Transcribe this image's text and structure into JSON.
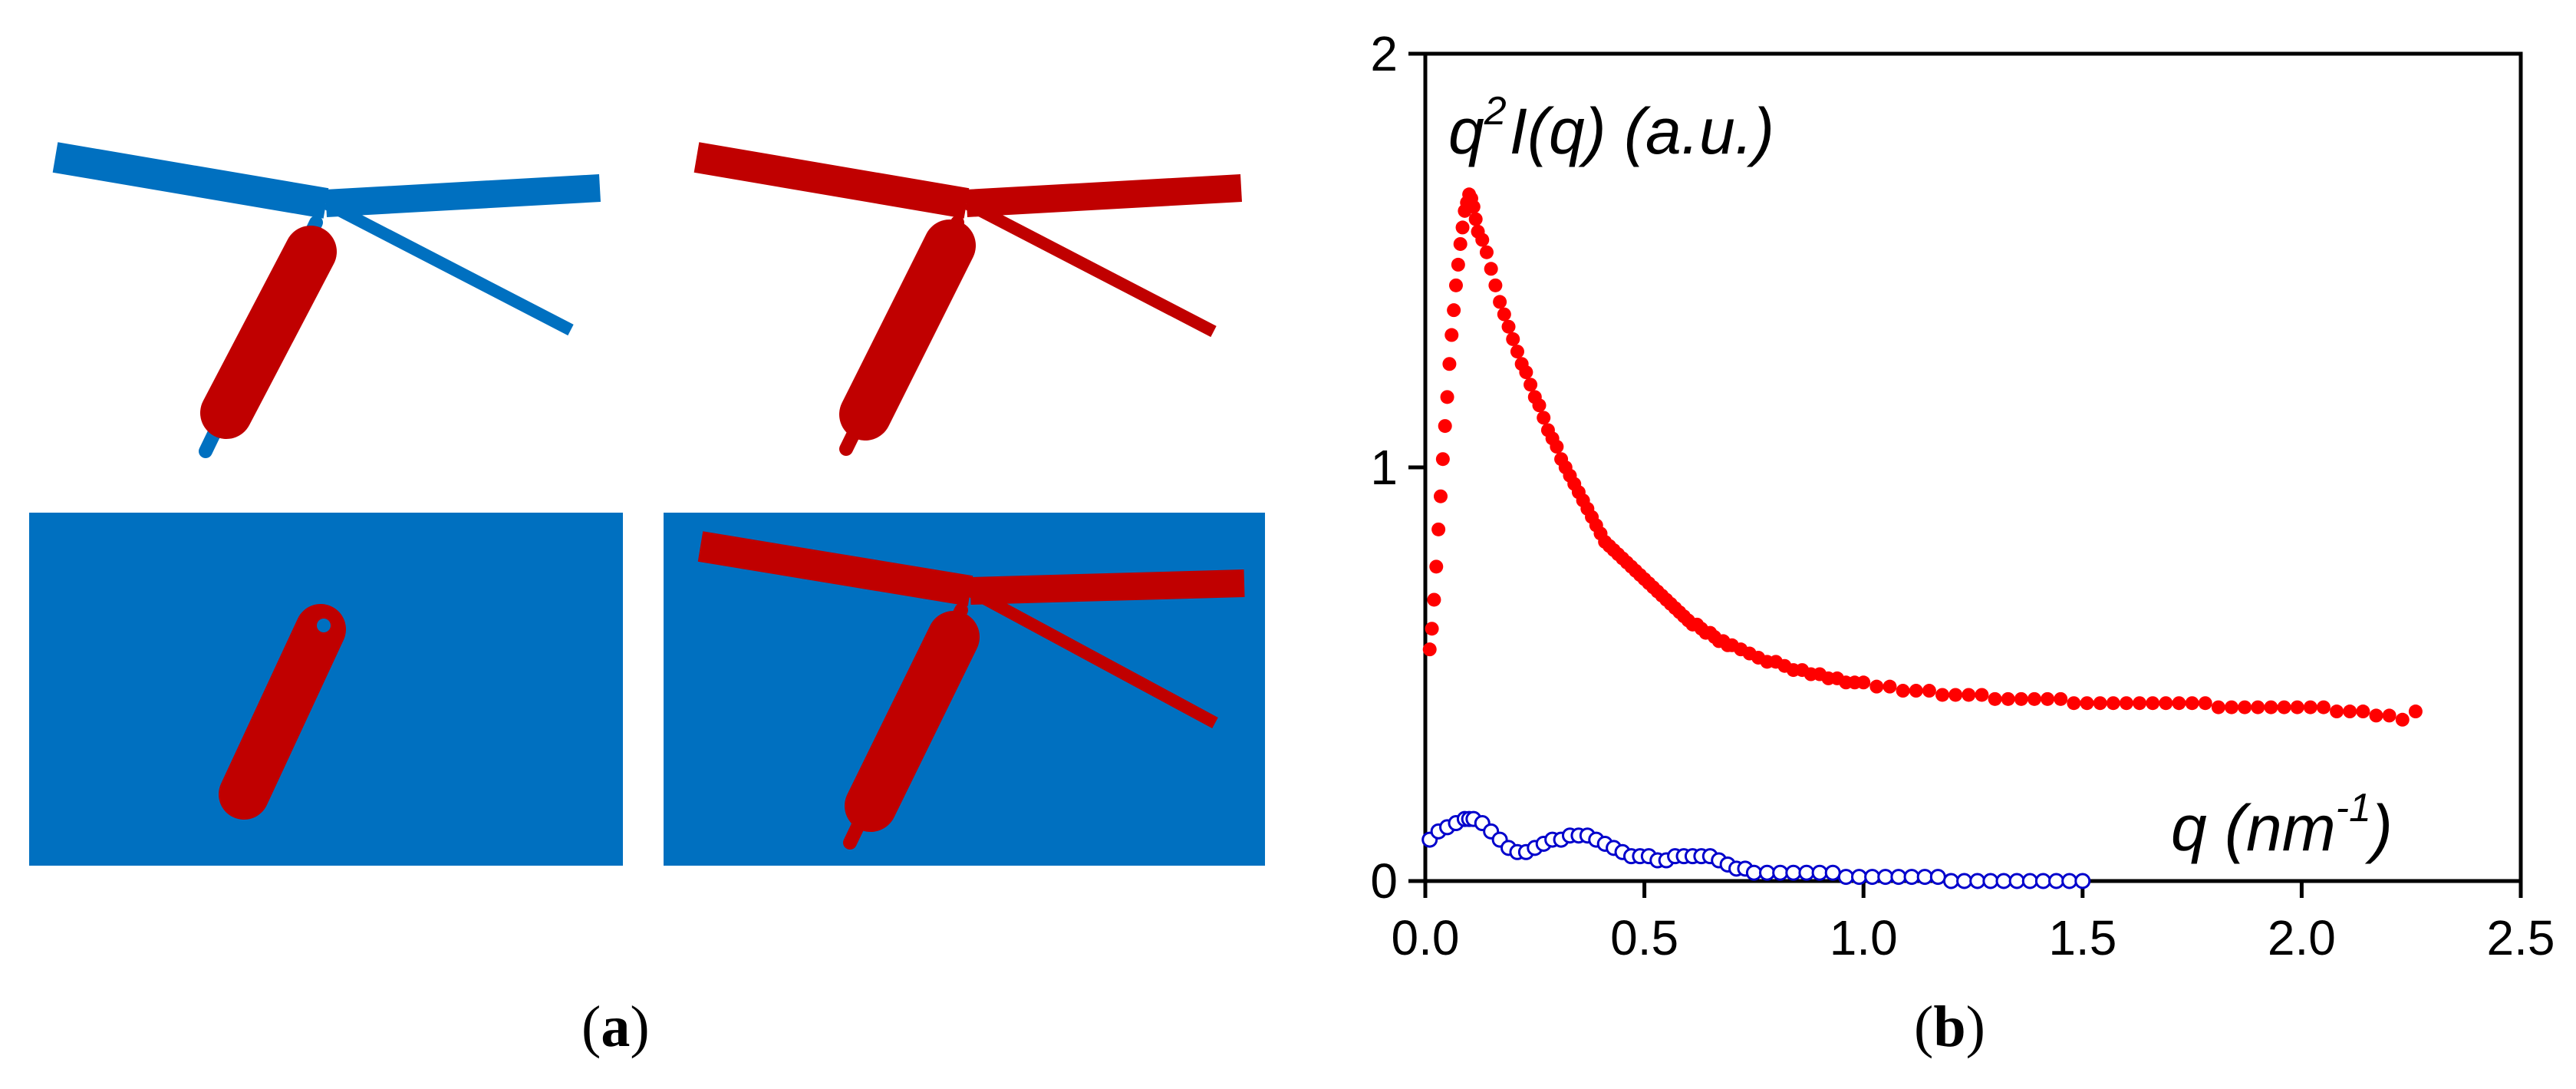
{
  "panels": {
    "a": {
      "caption_open": "(",
      "caption_letter": "a",
      "caption_close": ")"
    },
    "b": {
      "caption_open": "(",
      "caption_letter": "b",
      "caption_close": ")"
    }
  },
  "colors": {
    "blue": "#0070C0",
    "red": "#C00000",
    "series_red": "#FF0000",
    "series_blue": "#0000CC"
  },
  "chart_data": {
    "type": "scatter",
    "title": "",
    "xlabel": {
      "base": "q (nm",
      "sup": "-1",
      "close": ")"
    },
    "ylabel": {
      "pre": "q",
      "sup": "2",
      "post": "I(q) (a.u.)"
    },
    "xlim": [
      0,
      2.5
    ],
    "ylim": [
      0,
      2
    ],
    "xticks": [
      0.0,
      0.5,
      1.0,
      1.5,
      2.0,
      2.5
    ],
    "xtick_labels": [
      "0.0",
      "0.5",
      "1.0",
      "1.5",
      "2.0",
      "2.5"
    ],
    "yticks": [
      0,
      1,
      2
    ],
    "ytick_labels": [
      "0",
      "1",
      "2"
    ],
    "grid": false,
    "series": [
      {
        "marker": "filled-circle",
        "color": "#FF0000",
        "x": [
          0.01,
          0.015,
          0.02,
          0.025,
          0.03,
          0.035,
          0.04,
          0.045,
          0.05,
          0.055,
          0.06,
          0.065,
          0.07,
          0.075,
          0.08,
          0.085,
          0.09,
          0.095,
          0.1,
          0.105,
          0.11,
          0.115,
          0.12,
          0.13,
          0.14,
          0.15,
          0.16,
          0.17,
          0.18,
          0.19,
          0.2,
          0.21,
          0.22,
          0.23,
          0.24,
          0.25,
          0.26,
          0.27,
          0.28,
          0.29,
          0.3,
          0.31,
          0.32,
          0.33,
          0.34,
          0.35,
          0.36,
          0.37,
          0.38,
          0.39,
          0.4,
          0.41,
          0.42,
          0.43,
          0.44,
          0.45,
          0.46,
          0.47,
          0.48,
          0.49,
          0.5,
          0.51,
          0.52,
          0.53,
          0.54,
          0.55,
          0.56,
          0.57,
          0.58,
          0.59,
          0.6,
          0.61,
          0.62,
          0.63,
          0.64,
          0.65,
          0.66,
          0.67,
          0.68,
          0.69,
          0.7,
          0.72,
          0.74,
          0.76,
          0.78,
          0.8,
          0.82,
          0.84,
          0.86,
          0.88,
          0.9,
          0.92,
          0.94,
          0.96,
          0.98,
          1.0,
          1.03,
          1.06,
          1.09,
          1.12,
          1.15,
          1.18,
          1.21,
          1.24,
          1.27,
          1.3,
          1.33,
          1.36,
          1.39,
          1.42,
          1.45,
          1.48,
          1.51,
          1.54,
          1.57,
          1.6,
          1.63,
          1.66,
          1.69,
          1.72,
          1.75,
          1.78,
          1.81,
          1.84,
          1.87,
          1.9,
          1.93,
          1.96,
          1.99,
          2.02,
          2.05,
          2.08,
          2.11,
          2.14,
          2.17,
          2.2,
          2.23,
          2.26
        ],
        "y": [
          0.56,
          0.61,
          0.68,
          0.76,
          0.85,
          0.93,
          1.02,
          1.1,
          1.17,
          1.25,
          1.32,
          1.38,
          1.44,
          1.49,
          1.54,
          1.58,
          1.62,
          1.64,
          1.66,
          1.65,
          1.63,
          1.6,
          1.57,
          1.55,
          1.52,
          1.48,
          1.44,
          1.4,
          1.37,
          1.34,
          1.31,
          1.28,
          1.25,
          1.23,
          1.2,
          1.17,
          1.15,
          1.12,
          1.09,
          1.07,
          1.05,
          1.02,
          1.0,
          0.98,
          0.96,
          0.94,
          0.92,
          0.9,
          0.88,
          0.86,
          0.84,
          0.82,
          0.81,
          0.8,
          0.79,
          0.78,
          0.77,
          0.76,
          0.75,
          0.74,
          0.73,
          0.72,
          0.71,
          0.7,
          0.69,
          0.68,
          0.67,
          0.66,
          0.65,
          0.64,
          0.63,
          0.62,
          0.62,
          0.61,
          0.6,
          0.6,
          0.59,
          0.58,
          0.58,
          0.57,
          0.57,
          0.56,
          0.55,
          0.54,
          0.53,
          0.53,
          0.52,
          0.51,
          0.51,
          0.5,
          0.5,
          0.49,
          0.49,
          0.48,
          0.48,
          0.48,
          0.47,
          0.47,
          0.46,
          0.46,
          0.46,
          0.45,
          0.45,
          0.45,
          0.45,
          0.44,
          0.44,
          0.44,
          0.44,
          0.44,
          0.44,
          0.43,
          0.43,
          0.43,
          0.43,
          0.43,
          0.43,
          0.43,
          0.43,
          0.43,
          0.43,
          0.43,
          0.42,
          0.42,
          0.42,
          0.42,
          0.42,
          0.42,
          0.42,
          0.42,
          0.42,
          0.41,
          0.41,
          0.41,
          0.4,
          0.4,
          0.39,
          0.41
        ]
      },
      {
        "marker": "open-circle",
        "color": "#0000CC",
        "x": [
          0.01,
          0.03,
          0.05,
          0.07,
          0.09,
          0.1,
          0.11,
          0.13,
          0.15,
          0.17,
          0.19,
          0.21,
          0.23,
          0.25,
          0.27,
          0.29,
          0.31,
          0.33,
          0.35,
          0.37,
          0.39,
          0.41,
          0.43,
          0.45,
          0.47,
          0.49,
          0.51,
          0.53,
          0.55,
          0.57,
          0.59,
          0.61,
          0.63,
          0.65,
          0.67,
          0.69,
          0.71,
          0.73,
          0.75,
          0.78,
          0.81,
          0.84,
          0.87,
          0.9,
          0.93,
          0.96,
          0.99,
          1.02,
          1.05,
          1.08,
          1.11,
          1.14,
          1.17,
          1.2,
          1.23,
          1.26,
          1.29,
          1.32,
          1.35,
          1.38,
          1.41,
          1.44,
          1.47,
          1.5
        ],
        "y": [
          0.1,
          0.12,
          0.13,
          0.14,
          0.15,
          0.15,
          0.15,
          0.14,
          0.12,
          0.1,
          0.08,
          0.07,
          0.07,
          0.08,
          0.09,
          0.1,
          0.1,
          0.11,
          0.11,
          0.11,
          0.1,
          0.09,
          0.08,
          0.07,
          0.06,
          0.06,
          0.06,
          0.05,
          0.05,
          0.06,
          0.06,
          0.06,
          0.06,
          0.06,
          0.05,
          0.04,
          0.03,
          0.03,
          0.02,
          0.02,
          0.02,
          0.02,
          0.02,
          0.02,
          0.02,
          0.01,
          0.01,
          0.01,
          0.01,
          0.01,
          0.01,
          0.01,
          0.01,
          0.0,
          0.0,
          0.0,
          0.0,
          0.0,
          0.0,
          0.0,
          0.0,
          0.0,
          0.0,
          0.0
        ]
      }
    ]
  }
}
